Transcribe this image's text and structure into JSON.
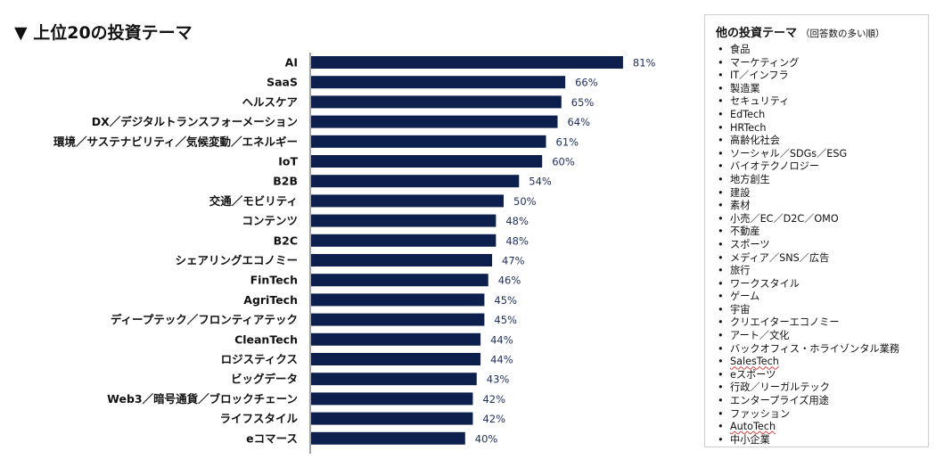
{
  "title": "▼ 上位20の投資テーマ",
  "chart_data": {
    "type": "bar",
    "orientation": "horizontal",
    "title": "▼ 上位20の投資テーマ",
    "categories": [
      "AI",
      "SaaS",
      "ヘルスケア",
      "DX／デジタルトランスフォーメーション",
      "環境／サステナビリティ／気候変動／エネルギー",
      "IoT",
      "B2B",
      "交通／モビリティ",
      "コンテンツ",
      "B2C",
      "シェアリングエコノミー",
      "FinTech",
      "AgriTech",
      "ディープテック／フロンティアテック",
      "CleanTech",
      "ロジスティクス",
      "ビッグデータ",
      "Web3／暗号通貨／ブロックチェーン",
      "ライフスタイル",
      "eコマース"
    ],
    "values": [
      81,
      66,
      65,
      64,
      61,
      60,
      54,
      50,
      48,
      48,
      47,
      46,
      45,
      45,
      44,
      44,
      43,
      42,
      42,
      40
    ],
    "value_labels": [
      "81%",
      "66%",
      "65%",
      "64%",
      "61%",
      "60%",
      "54%",
      "50%",
      "48%",
      "48%",
      "47%",
      "46%",
      "45%",
      "45%",
      "44%",
      "44%",
      "43%",
      "42%",
      "42%",
      "40%"
    ],
    "bar_color": "#0d1f4d",
    "label_color": "#1f2f5c",
    "xlim": [
      0,
      100
    ],
    "grid": false,
    "legend": "none"
  },
  "side_panel": {
    "title": "他の投資テーマ",
    "subtitle": "（回答数の多い順）",
    "items": [
      "食品",
      "マーケティング",
      "IT／インフラ",
      "製造業",
      "セキュリティ",
      "EdTech",
      "HRTech",
      "高齢化社会",
      "ソーシャル／SDGs／ESG",
      "バイオテクノロジー",
      "地方創生",
      "建設",
      "素材",
      "小売／EC／D2C／OMO",
      "不動産",
      "スポーツ",
      "メディア／SNS／広告",
      "旅行",
      "ワークスタイル",
      "ゲーム",
      "宇宙",
      "クリエイターエコノミー",
      "アート／文化",
      "バックオフィス・ホライゾンタル業務",
      "SalesTech",
      "eスポーツ",
      "行政／リーガルテック",
      "エンタープライズ用途",
      "ファッション",
      "AutoTech",
      "中小企業"
    ],
    "underlined": [
      "SalesTech",
      "AutoTech"
    ]
  }
}
